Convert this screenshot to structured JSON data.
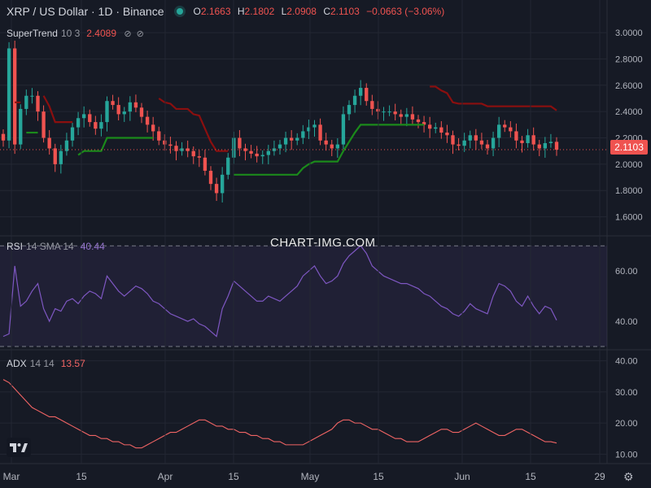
{
  "header": {
    "symbol": "XRP / US Dollar · 1D · Binance",
    "open_label": "O",
    "open": "2.1663",
    "high_label": "H",
    "high": "2.1802",
    "low_label": "L",
    "low": "2.0908",
    "close_label": "C",
    "close": "2.1103",
    "change": "−0.0663 (−3.06%)"
  },
  "supertrend": {
    "name": "SuperTrend",
    "params": "10 3",
    "value": "2.4089",
    "icons": [
      "hide-icon",
      "hide-icon"
    ]
  },
  "rsi": {
    "name": "RSI",
    "params": "14 SMA 14",
    "value": "40.44"
  },
  "adx": {
    "name": "ADX",
    "params": "14 14",
    "value": "13.57"
  },
  "watermark": "CHART-IMG.COM",
  "last_price_tag": "2.1103",
  "colors": {
    "bg": "#161a25",
    "up": "#26a69a",
    "down": "#ef5350",
    "st_up": "#1b8a1b",
    "st_down": "#8b0f0f",
    "rsi": "#7e57c2",
    "adx": "#f06464",
    "grid": "#232733"
  },
  "chart_data": [
    {
      "type": "candlestick",
      "title": "XRP / US Dollar · 1D · Binance",
      "x_tick_labels": [
        "Mar",
        "15",
        "Apr",
        "15",
        "May",
        "15",
        "Jun",
        "15",
        "29"
      ],
      "y_tick_labels": [
        "1.6000",
        "1.8000",
        "2.0000",
        "2.2000",
        "2.4000",
        "2.6000",
        "2.8000",
        "3.0000"
      ],
      "ylim": [
        1.48,
        3.05
      ],
      "close_series": [
        2.18,
        2.88,
        2.15,
        2.42,
        2.52,
        2.52,
        2.4,
        2.2,
        2.12,
        2.0,
        2.1,
        2.18,
        2.28,
        2.35,
        2.38,
        2.32,
        2.27,
        2.32,
        2.48,
        2.45,
        2.38,
        2.4,
        2.47,
        2.43,
        2.36,
        2.3,
        2.25,
        2.18,
        2.15,
        2.14,
        2.1,
        2.12,
        2.1,
        2.06,
        2.05,
        1.95,
        1.85,
        1.78,
        1.92,
        2.05,
        2.2,
        2.12,
        2.1,
        2.08,
        2.06,
        2.07,
        2.1,
        2.12,
        2.15,
        2.2,
        2.18,
        2.2,
        2.25,
        2.28,
        2.3,
        2.18,
        2.15,
        2.12,
        2.15,
        2.38,
        2.45,
        2.52,
        2.58,
        2.48,
        2.42,
        2.4,
        2.4,
        2.4,
        2.38,
        2.36,
        2.38,
        2.34,
        2.32,
        2.3,
        2.27,
        2.28,
        2.24,
        2.22,
        2.15,
        2.14,
        2.18,
        2.22,
        2.18,
        2.15,
        2.12,
        2.2,
        2.3,
        2.28,
        2.25,
        2.18,
        2.16,
        2.22,
        2.15,
        2.12,
        2.16,
        2.17,
        2.11
      ],
      "supertrend": {
        "params": "10 3",
        "last_value": 2.4089
      },
      "last_price": 2.1103
    },
    {
      "type": "line",
      "name": "RSI 14 SMA 14",
      "y_tick_labels": [
        "40.00",
        "60.00"
      ],
      "ylim": [
        30,
        72
      ],
      "band": [
        30,
        70
      ],
      "values": [
        34,
        35,
        62,
        46,
        48,
        52,
        55,
        45,
        40,
        45,
        44,
        48,
        49,
        47,
        50,
        52,
        51,
        49,
        58,
        55,
        52,
        50,
        52,
        54,
        53,
        51,
        48,
        47,
        45,
        43,
        42,
        41,
        40,
        41,
        39,
        38,
        36,
        34,
        45,
        50,
        56,
        54,
        52,
        50,
        48,
        48,
        50,
        49,
        48,
        50,
        52,
        54,
        58,
        60,
        62,
        58,
        55,
        56,
        58,
        63,
        66,
        68,
        70,
        67,
        62,
        60,
        58,
        57,
        56,
        55,
        55,
        54,
        53,
        51,
        50,
        48,
        46,
        45,
        43,
        42,
        44,
        47,
        45,
        44,
        43,
        50,
        55,
        54,
        52,
        48,
        46,
        50,
        46,
        43,
        46,
        45,
        40.44
      ]
    },
    {
      "type": "line",
      "name": "ADX 14 14",
      "y_tick_labels": [
        "10.00",
        "20.00",
        "30.00",
        "40.00"
      ],
      "ylim": [
        8,
        42
      ],
      "values": [
        34,
        33,
        31,
        29,
        27,
        25,
        24,
        23,
        22,
        22,
        21,
        20,
        19,
        18,
        17,
        16,
        16,
        15,
        15,
        14,
        14,
        13,
        13,
        12,
        12,
        13,
        14,
        15,
        16,
        17,
        17,
        18,
        19,
        20,
        21,
        21,
        20,
        19,
        19,
        18,
        18,
        17,
        17,
        16,
        16,
        15,
        15,
        14,
        14,
        13,
        13,
        13,
        13,
        14,
        15,
        16,
        17,
        18,
        20,
        21,
        21,
        20,
        20,
        19,
        18,
        18,
        17,
        16,
        15,
        15,
        14,
        14,
        14,
        15,
        16,
        17,
        18,
        18,
        17,
        17,
        18,
        19,
        20,
        19,
        18,
        17,
        16,
        16,
        17,
        18,
        18,
        17,
        16,
        15,
        14,
        14,
        13.57
      ]
    }
  ]
}
